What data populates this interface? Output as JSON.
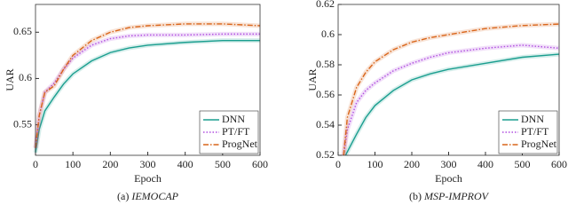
{
  "chart_data": [
    {
      "type": "line",
      "xlabel": "Epoch",
      "ylabel": "UAR",
      "caption_label": "(a)",
      "caption_title": "IEMOCAP",
      "xlim": [
        0,
        600
      ],
      "xticks": [
        0,
        100,
        200,
        300,
        400,
        500,
        600
      ],
      "ylim": [
        0.517,
        0.68
      ],
      "yticks": [
        0.55,
        0.6,
        0.65
      ],
      "legend": "lower right",
      "series": [
        {
          "name": "DNN",
          "color": "#1a9e8f",
          "style": "solid",
          "x": [
            0,
            10,
            25,
            50,
            75,
            100,
            150,
            200,
            250,
            300,
            400,
            500,
            600
          ],
          "values": [
            0.52,
            0.545,
            0.565,
            0.58,
            0.594,
            0.605,
            0.619,
            0.628,
            0.633,
            0.636,
            0.639,
            0.641,
            0.641
          ]
        },
        {
          "name": "PT/FT",
          "color": "#b04fe0",
          "style": "dotted",
          "x": [
            0,
            10,
            25,
            50,
            75,
            100,
            150,
            200,
            250,
            300,
            400,
            500,
            600
          ],
          "values": [
            0.525,
            0.56,
            0.585,
            0.595,
            0.61,
            0.622,
            0.636,
            0.643,
            0.646,
            0.647,
            0.647,
            0.648,
            0.648
          ]
        },
        {
          "name": "ProgNet",
          "color": "#d9651a",
          "style": "dashdot",
          "x": [
            0,
            10,
            25,
            50,
            75,
            100,
            150,
            200,
            250,
            300,
            400,
            500,
            600
          ],
          "values": [
            0.525,
            0.56,
            0.585,
            0.592,
            0.61,
            0.625,
            0.641,
            0.65,
            0.655,
            0.657,
            0.659,
            0.659,
            0.657
          ]
        }
      ]
    },
    {
      "type": "line",
      "xlabel": "Epoch",
      "ylabel": "UAR",
      "caption_label": "(b)",
      "caption_title": "MSP-IMPROV",
      "xlim": [
        0,
        600
      ],
      "xticks": [
        0,
        100,
        200,
        300,
        400,
        500,
        600
      ],
      "ylim": [
        0.52,
        0.62
      ],
      "yticks": [
        0.52,
        0.54,
        0.56,
        0.58,
        0.6,
        0.62
      ],
      "legend": "lower right",
      "series": [
        {
          "name": "DNN",
          "color": "#1a9e8f",
          "style": "solid",
          "x": [
            20,
            50,
            75,
            100,
            150,
            200,
            250,
            300,
            400,
            500,
            600
          ],
          "values": [
            0.52,
            0.534,
            0.545,
            0.553,
            0.563,
            0.57,
            0.574,
            0.577,
            0.581,
            0.585,
            0.587
          ]
        },
        {
          "name": "PT/FT",
          "color": "#b04fe0",
          "style": "dotted",
          "x": [
            15,
            25,
            50,
            75,
            100,
            150,
            200,
            250,
            300,
            400,
            500,
            600
          ],
          "values": [
            0.52,
            0.537,
            0.555,
            0.563,
            0.568,
            0.576,
            0.581,
            0.585,
            0.588,
            0.591,
            0.593,
            0.591
          ]
        },
        {
          "name": "ProgNet",
          "color": "#d9651a",
          "style": "dashdot",
          "x": [
            15,
            25,
            50,
            75,
            100,
            150,
            200,
            250,
            300,
            400,
            500,
            600
          ],
          "values": [
            0.52,
            0.545,
            0.565,
            0.575,
            0.582,
            0.59,
            0.595,
            0.598,
            0.6,
            0.604,
            0.606,
            0.607
          ]
        }
      ]
    }
  ]
}
